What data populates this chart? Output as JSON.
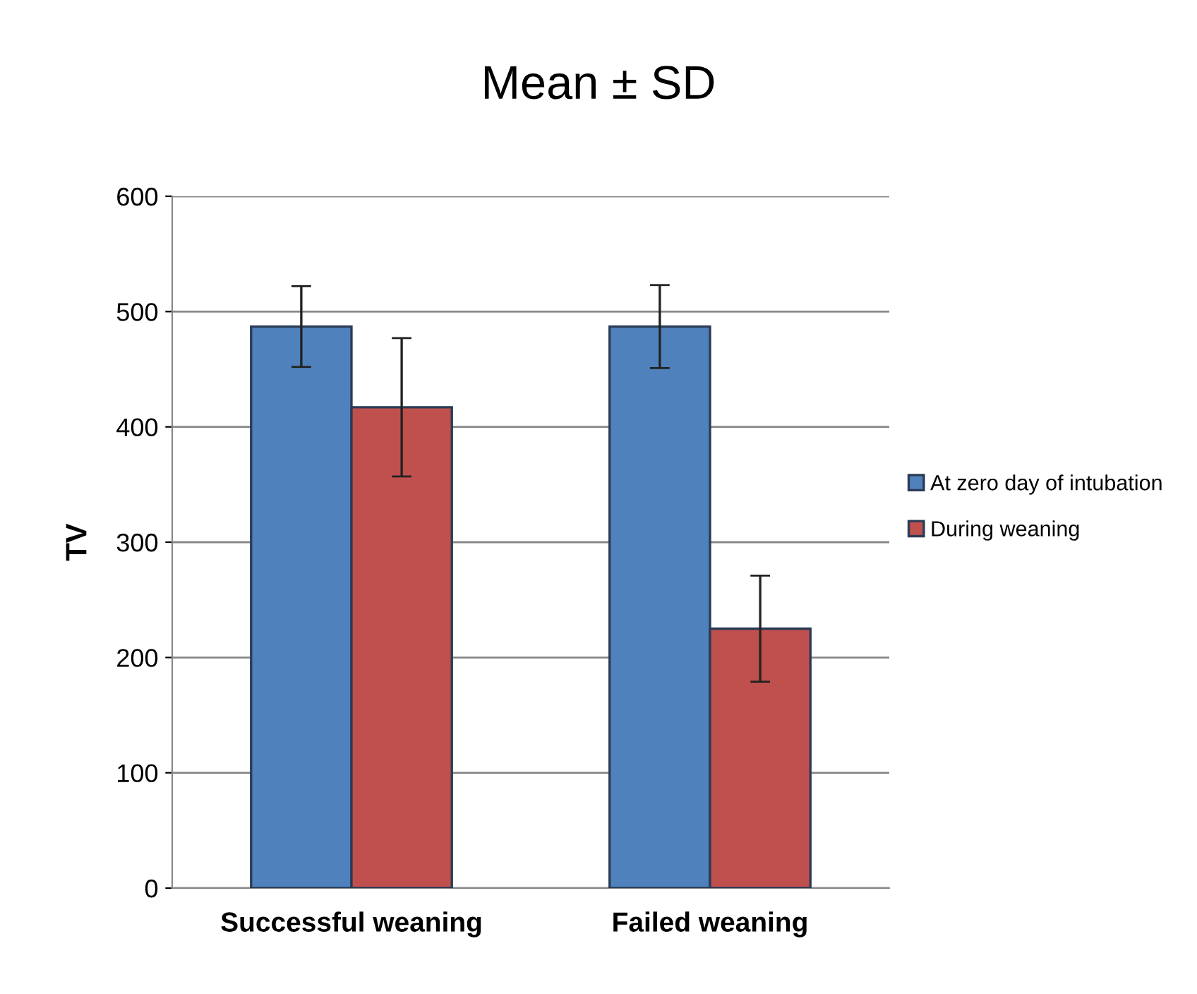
{
  "chart_data": {
    "type": "bar",
    "title": "Mean ± SD",
    "ylabel": "TV",
    "categories": [
      "Successful weaning",
      "Failed weaning"
    ],
    "series": [
      {
        "name": "At zero day of intubation",
        "color": "#4f81bd",
        "values": [
          487,
          487
        ],
        "errors": [
          35,
          36
        ]
      },
      {
        "name": "During weaning",
        "color": "#c0504d",
        "values": [
          417,
          225
        ],
        "errors": [
          60,
          46
        ]
      }
    ],
    "ylim": [
      0,
      600
    ],
    "yticks": [
      0,
      100,
      200,
      300,
      400,
      500,
      600
    ],
    "grid": "y",
    "legend": "right"
  }
}
